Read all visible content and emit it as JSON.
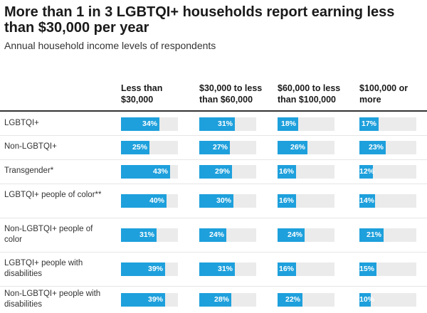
{
  "title": "More than 1 in 3 LGBTQI+ households report earning less than $30,000 per year",
  "subtitle": "Annual household income levels of respondents",
  "accent_color": "#1ea0dc",
  "track_color": "#ebebeb",
  "chart_data": {
    "type": "table",
    "title": "More than 1 in 3 LGBTQI+ households report earning less than $30,000 per year",
    "subtitle": "Annual household income levels of respondents",
    "columns": [
      "Less than $30,000",
      "$30,000 to less than $60,000",
      "$60,000 to less than $100,000",
      "$100,000 or more"
    ],
    "unit": "%",
    "rows": [
      {
        "label": "LGBTQI+",
        "values": [
          34,
          31,
          18,
          17
        ]
      },
      {
        "label": "Non-LGBTQI+",
        "values": [
          25,
          27,
          26,
          23
        ]
      },
      {
        "label": "Transgender*",
        "values": [
          43,
          29,
          16,
          12
        ]
      },
      {
        "label": "LGBTQI+ people of color**",
        "values": [
          40,
          30,
          16,
          14
        ]
      },
      {
        "label": "Non-LGBTQI+ people of color",
        "values": [
          31,
          24,
          24,
          21
        ]
      },
      {
        "label": "LGBTQI+ people with disabilities",
        "values": [
          39,
          31,
          16,
          15
        ]
      },
      {
        "label": "Non-LGBTQI+ people with disabilities",
        "values": [
          39,
          28,
          22,
          10
        ]
      }
    ],
    "value_range": [
      0,
      50
    ]
  }
}
